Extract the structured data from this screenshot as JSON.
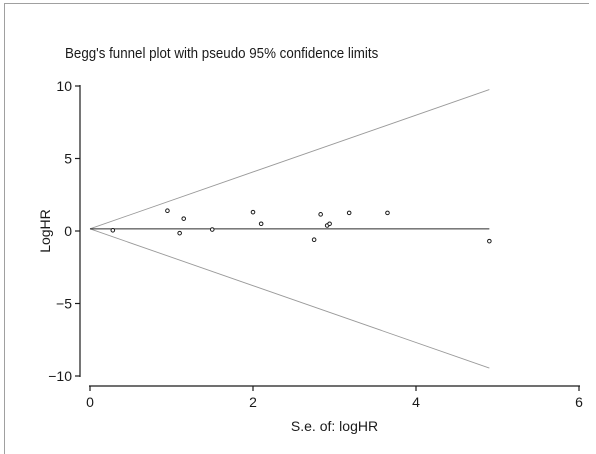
{
  "chart_data": {
    "type": "scatter",
    "title": "Begg's funnel plot with pseudo 95% confidence limits",
    "xlabel": "S.e. of: logHR",
    "ylabel": "LogHR",
    "xlim": [
      0,
      6
    ],
    "ylim": [
      -10,
      10
    ],
    "xticks": [
      0,
      2,
      4,
      6
    ],
    "yticks": [
      10,
      5,
      0,
      -5,
      -10
    ],
    "ytick_labels": [
      "10",
      "5",
      "0",
      "−5",
      "−10"
    ],
    "pooled_estimate": 0.15,
    "confidence_limit_max_se": 4.9,
    "grid": false,
    "points": [
      {
        "x": 0.28,
        "y": 0.05
      },
      {
        "x": 0.95,
        "y": 1.4
      },
      {
        "x": 1.1,
        "y": -0.15
      },
      {
        "x": 1.15,
        "y": 0.85
      },
      {
        "x": 1.5,
        "y": 0.1
      },
      {
        "x": 2.0,
        "y": 1.3
      },
      {
        "x": 2.1,
        "y": 0.5
      },
      {
        "x": 2.75,
        "y": -0.6
      },
      {
        "x": 2.83,
        "y": 1.15
      },
      {
        "x": 2.91,
        "y": 0.38
      },
      {
        "x": 2.94,
        "y": 0.5
      },
      {
        "x": 3.18,
        "y": 1.25
      },
      {
        "x": 3.65,
        "y": 1.25
      },
      {
        "x": 4.9,
        "y": -0.7
      }
    ]
  }
}
